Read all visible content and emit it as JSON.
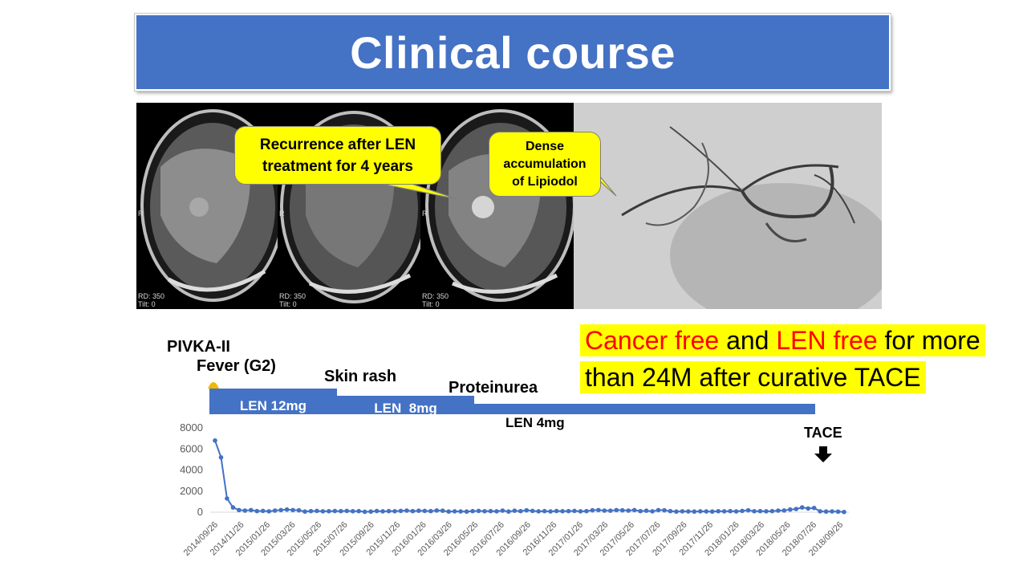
{
  "title": "Clinical course",
  "images": {
    "panel_labels": {
      "side": "R",
      "rd": "RD: 350",
      "tilt": "Tilt: 0"
    },
    "callout_recurrence": "Recurrence after LEN treatment for 4 years",
    "callout_lipiodol": "Dense accumulation of Lipiodol"
  },
  "highlight": {
    "cancer_free": "Cancer free",
    "and": " and ",
    "len_free": "LEN free",
    "rest1": " for more",
    "line2": "than 24M after curative TACE"
  },
  "timeline": {
    "pivka_label": "PIVKA-II",
    "fever": "Fever (G2)",
    "skin_rash": "Skin rash",
    "proteinurea": "Proteinurea",
    "len12": "LEN 12mg",
    "len8": "LEN  8mg",
    "len4": "LEN 4mg",
    "tace": "TACE"
  },
  "colors": {
    "accent": "#4472c4",
    "highlight": "#ffff00",
    "alert_text": "#ff0000"
  },
  "chart_data": {
    "type": "line",
    "series": [
      {
        "x": [
          "2014/09/26",
          "2014/10/10",
          "2014/10/24",
          "2014/11/07",
          "2014/11/21",
          "2014/12/05",
          "2014/12/19",
          "2015/01/02",
          "2015/01/16",
          "2015/01/30",
          "2015/02/13",
          "2015/02/27",
          "2015/03/13",
          "2015/03/27",
          "2015/04/10",
          "2015/04/24",
          "2015/05/08",
          "2015/05/22",
          "2015/06/05",
          "2015/06/19",
          "2015/07/03",
          "2015/07/17",
          "2015/07/31",
          "2015/08/14",
          "2015/08/28",
          "2015/09/11",
          "2015/09/25",
          "2015/10/09",
          "2015/10/23",
          "2015/11/06",
          "2015/11/20",
          "2015/12/04",
          "2015/12/18",
          "2016/01/01",
          "2016/01/15",
          "2016/01/29",
          "2016/02/12",
          "2016/02/26",
          "2016/03/11",
          "2016/03/25",
          "2016/04/08",
          "2016/04/22",
          "2016/05/06",
          "2016/05/20",
          "2016/06/03",
          "2016/06/17",
          "2016/07/01",
          "2016/07/15",
          "2016/07/29",
          "2016/08/12",
          "2016/08/26",
          "2016/09/09",
          "2016/09/23",
          "2016/10/07",
          "2016/10/21",
          "2016/11/04",
          "2016/11/18",
          "2016/12/02",
          "2016/12/16",
          "2016/12/30",
          "2017/01/13",
          "2017/01/27",
          "2017/02/10",
          "2017/02/24",
          "2017/03/10",
          "2017/03/24",
          "2017/04/07",
          "2017/04/21",
          "2017/05/05",
          "2017/05/19",
          "2017/06/02",
          "2017/06/16",
          "2017/06/30",
          "2017/07/14",
          "2017/07/28",
          "2017/08/11",
          "2017/08/25",
          "2017/09/08",
          "2017/09/22",
          "2017/10/06",
          "2017/10/20",
          "2017/11/03",
          "2017/11/17",
          "2017/12/01",
          "2017/12/15",
          "2017/12/29",
          "2018/01/12",
          "2018/01/26",
          "2018/02/09",
          "2018/02/23",
          "2018/03/09",
          "2018/03/23",
          "2018/04/06",
          "2018/04/20",
          "2018/05/04",
          "2018/05/18",
          "2018/06/01",
          "2018/06/15",
          "2018/06/29",
          "2018/07/13",
          "2018/07/27",
          "2018/08/10",
          "2018/08/24",
          "2018/09/07",
          "2018/09/21",
          "2018/10/05"
        ],
        "values": [
          6800,
          5200,
          1300,
          450,
          200,
          150,
          200,
          100,
          120,
          80,
          150,
          200,
          250,
          200,
          180,
          60,
          100,
          120,
          80,
          90,
          110,
          100,
          120,
          90,
          100,
          40,
          60,
          110,
          80,
          100,
          90,
          120,
          150,
          100,
          140,
          120,
          100,
          160,
          140,
          60,
          80,
          70,
          60,
          100,
          120,
          90,
          100,
          80,
          150,
          60,
          140,
          100,
          180,
          120,
          80,
          100,
          70,
          110,
          90,
          100,
          120,
          80,
          100,
          180,
          200,
          150,
          140,
          200,
          180,
          150,
          200,
          100,
          140,
          80,
          200,
          180,
          100,
          60,
          80,
          70,
          60,
          80,
          70,
          60,
          90,
          80,
          100,
          70,
          120,
          180,
          90,
          100,
          80,
          100,
          150,
          160,
          250,
          300,
          450,
          350,
          400,
          80,
          60,
          70,
          50,
          20
        ]
      }
    ],
    "x_tick_labels": [
      "2014/09/26",
      "2014/11/26",
      "2015/01/26",
      "2015/03/26",
      "2015/05/26",
      "2015/07/26",
      "2015/09/26",
      "2015/11/26",
      "2016/01/26",
      "2016/03/26",
      "2016/05/26",
      "2016/07/26",
      "2016/09/26",
      "2016/11/26",
      "2017/01/26",
      "2017/03/26",
      "2017/05/26",
      "2017/07/26",
      "2017/09/26",
      "2017/11/26",
      "2018/01/26",
      "2018/03/26",
      "2018/05/26",
      "2018/07/26",
      "2018/09/26"
    ],
    "y_ticks": [
      0,
      2000,
      4000,
      6000,
      8000
    ],
    "ylim": [
      0,
      8000
    ],
    "grid": false,
    "legend": "none",
    "color": "#4472c4"
  }
}
